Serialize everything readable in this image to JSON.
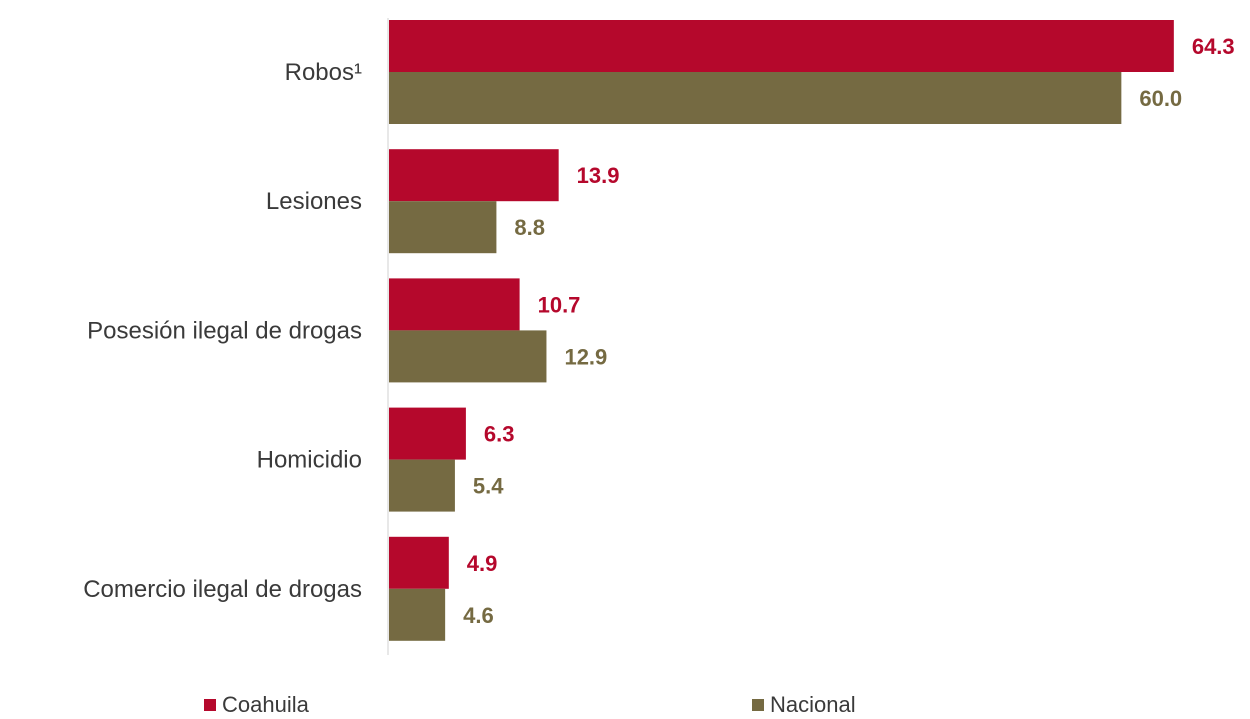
{
  "chart_data": {
    "type": "bar",
    "orientation": "horizontal",
    "categories": [
      "Robos¹",
      "Lesiones",
      "Posesión ilegal de drogas",
      "Homicidio",
      "Comercio ilegal de drogas"
    ],
    "series": [
      {
        "name": "Coahuila",
        "color": "#b5082c",
        "values": [
          64.3,
          13.9,
          10.7,
          6.3,
          4.9
        ],
        "labels": [
          "64.3",
          "13.9",
          "10.7",
          "6.3",
          "4.9"
        ]
      },
      {
        "name": "Nacional",
        "color": "#756a42",
        "values": [
          60.0,
          8.8,
          12.9,
          5.4,
          4.6
        ],
        "labels": [
          "60.0",
          "8.8",
          "12.9",
          "5.4",
          "4.6"
        ]
      }
    ],
    "xlim": [
      0,
      68
    ],
    "grid": false,
    "legend_position": "bottom"
  }
}
